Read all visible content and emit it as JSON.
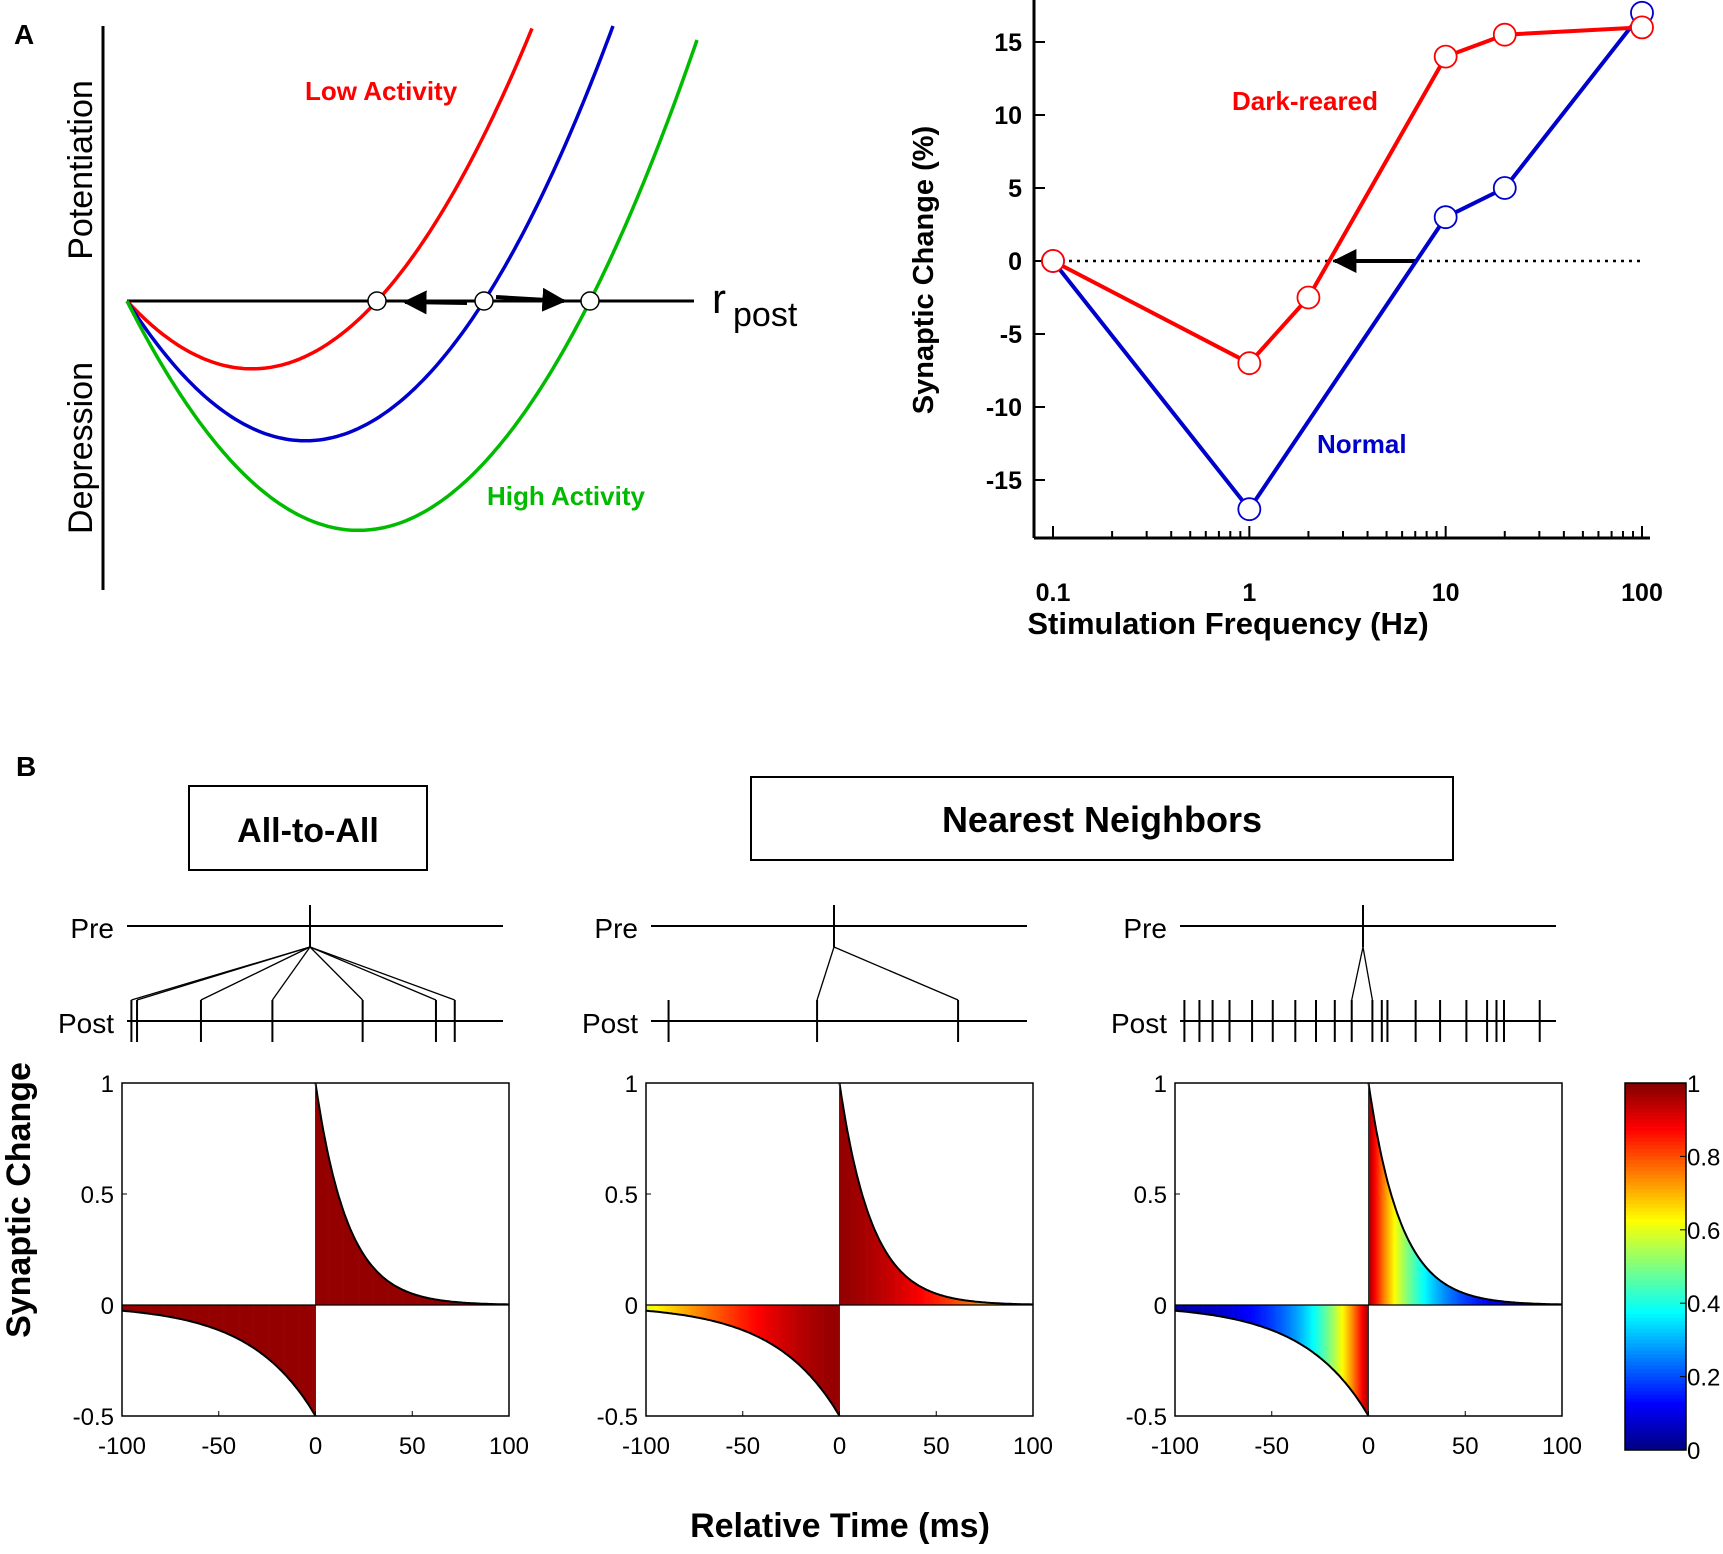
{
  "panel_labels": {
    "a": "A",
    "b": "B"
  },
  "colors": {
    "low": "#ff0000",
    "normal": "#0000cc",
    "high": "#00bb00",
    "axis": "#000000"
  },
  "chart_data": [
    {
      "id": "A-left",
      "type": "line",
      "title": "",
      "ylabel_top": "Potentiation",
      "ylabel_bottom": "Depression",
      "xlabel_main": "r",
      "xlabel_sub": "post",
      "series": [
        {
          "name": "Low Activity",
          "label": "Low Activity",
          "color": "#ff0000",
          "threshold": 0.42
        },
        {
          "name": "Normal",
          "color": "#0000cc",
          "threshold": 0.6
        },
        {
          "name": "High Activity",
          "label": "High Activity",
          "color": "#00bb00",
          "threshold": 0.78
        }
      ],
      "arrows": "threshold shifts left (low activity) and right (high activity)"
    },
    {
      "id": "A-right",
      "type": "line",
      "xscale": "log",
      "xlabel": "Stimulation Frequency (Hz)",
      "ylabel": "Synaptic Change (%)",
      "xlim": [
        0.1,
        100
      ],
      "ylim": [
        -18.5,
        18
      ],
      "x_ticks": [
        0.1,
        1,
        10,
        100
      ],
      "x_tick_labels": [
        "0.1",
        "1",
        "10",
        "100"
      ],
      "y_ticks": [
        15,
        10,
        5,
        0,
        -5,
        -10,
        -15
      ],
      "y_tick_labels": [
        "15",
        "10",
        "5",
        "0",
        "-5",
        "-10",
        "-15"
      ],
      "reference_line": 0,
      "series": [
        {
          "name": "Dark-reared",
          "label": "Dark-reared",
          "color": "#ff0000",
          "x": [
            0.1,
            1,
            2,
            10,
            20,
            100
          ],
          "y": [
            0,
            -7,
            -2.5,
            14,
            15.5,
            16
          ]
        },
        {
          "name": "Normal",
          "label": "Normal",
          "color": "#0000cc",
          "x": [
            0.1,
            1,
            10,
            20,
            100
          ],
          "y": [
            0,
            -17,
            3,
            5,
            17
          ]
        }
      ],
      "arrow": {
        "from_x": 7,
        "to_x": 2.6,
        "y": 0
      }
    },
    {
      "id": "B-1",
      "type": "heatmap",
      "header": "All-to-All",
      "pre_label": "Pre",
      "post_label": "Post",
      "pre_spike": 0,
      "post_spikes": [
        -95,
        -92,
        -58,
        -20,
        28,
        67,
        77
      ],
      "connected": [
        -95,
        -92,
        -58,
        -20,
        28,
        67,
        77
      ],
      "color_mode": "constant",
      "xlim": [
        -100,
        100
      ],
      "ylim": [
        -0.5,
        1
      ],
      "x_ticks": [
        -100,
        -50,
        0,
        50,
        100
      ],
      "x_tick_labels": [
        "-100",
        "-50",
        "0",
        "50",
        "100"
      ],
      "y_ticks": [
        1,
        0.5,
        0,
        -0.5
      ],
      "y_tick_labels": [
        "1",
        "0.5",
        "0",
        "-0.5"
      ]
    },
    {
      "id": "B-2",
      "type": "heatmap",
      "header": "Nearest Neighbors",
      "pre_label": "Pre",
      "post_label": "Post",
      "pre_spike": 0,
      "post_spikes": [
        -88,
        -9,
        66
      ],
      "connected": [
        -9,
        66
      ],
      "color_mode": "sparse",
      "xlim": [
        -100,
        100
      ],
      "ylim": [
        -0.5,
        1
      ],
      "x_ticks": [
        -100,
        -50,
        0,
        50,
        100
      ],
      "x_tick_labels": [
        "-100",
        "-50",
        "0",
        "50",
        "100"
      ],
      "y_ticks": [
        1,
        0.5,
        0,
        -0.5
      ],
      "y_tick_labels": [
        "1",
        "0.5",
        "0",
        "-0.5"
      ]
    },
    {
      "id": "B-3",
      "type": "heatmap",
      "pre_label": "Pre",
      "post_label": "Post",
      "pre_spike": 0,
      "post_spikes": [
        -95,
        -87,
        -80,
        -71,
        -59,
        -48,
        -36,
        -25,
        -15,
        -6,
        5,
        10,
        13,
        28,
        41,
        55,
        66,
        71,
        75,
        94
      ],
      "connected": [
        -6,
        5
      ],
      "color_mode": "dense",
      "xlim": [
        -100,
        100
      ],
      "ylim": [
        -0.5,
        1
      ],
      "x_ticks": [
        -100,
        -50,
        0,
        50,
        100
      ],
      "x_tick_labels": [
        "-100",
        "-50",
        "0",
        "50",
        "100"
      ],
      "y_ticks": [
        1,
        0.5,
        0,
        -0.5
      ],
      "y_tick_labels": [
        "1",
        "0.5",
        "0",
        "-0.5"
      ]
    },
    {
      "id": "B-colorbar",
      "type": "heatmap",
      "colormap": "jet",
      "range": [
        0,
        1
      ],
      "tick_labels": [
        "1",
        "0.8",
        "0.6",
        "0.4",
        "0.2",
        "0"
      ]
    }
  ],
  "shared_labels": {
    "ylabel": "Synaptic Change",
    "xlabel": "Relative Time (ms)"
  }
}
